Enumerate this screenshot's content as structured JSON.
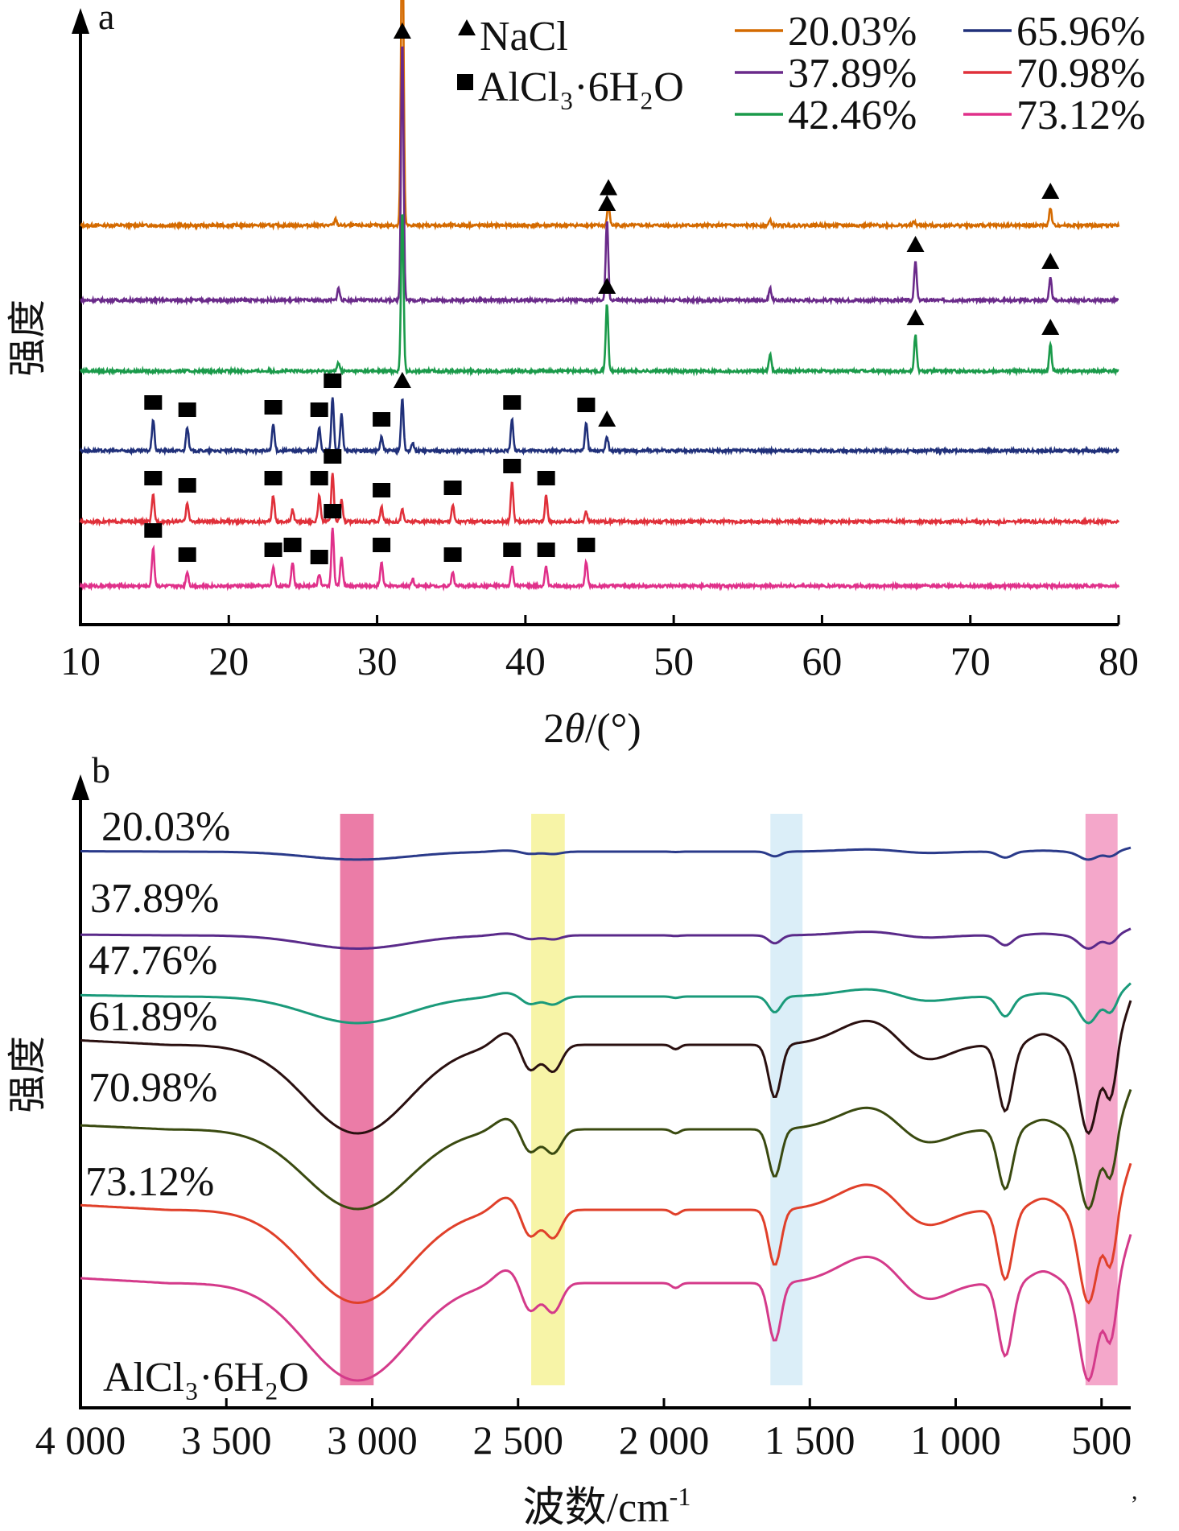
{
  "chart_data": [
    {
      "panel_label": "a",
      "type": "line",
      "xlabel_prefix": "2",
      "xlabel_symbol": "θ",
      "xlabel_suffix": "/(°)",
      "ylabel": "强度",
      "xlim": [
        10,
        80
      ],
      "xticks": [
        "10",
        "20",
        "30",
        "40",
        "50",
        "60",
        "70",
        "80"
      ],
      "legend_markers": [
        "NaCl",
        "AlCl₃·6H₂O"
      ],
      "series": [
        {
          "name": "20.03%",
          "color": "#d46a00",
          "peaks": [
            [
              27.2,
              0.25
            ],
            [
              31.7,
              13.5
            ],
            [
              45.6,
              0.85
            ],
            [
              56.5,
              0.2
            ],
            [
              66.2,
              0.15
            ],
            [
              75.4,
              0.7
            ]
          ],
          "markers": [
            {
              "x": 31.7,
              "type": "NaCl"
            },
            {
              "x": 45.6,
              "type": "NaCl"
            },
            {
              "x": 75.4,
              "type": "NaCl"
            }
          ]
        },
        {
          "name": "37.89%",
          "color": "#6a2a8a",
          "peaks": [
            [
              27.4,
              0.5
            ],
            [
              31.7,
              10.8
            ],
            [
              45.5,
              3.3
            ],
            [
              56.5,
              0.5
            ],
            [
              66.3,
              1.6
            ],
            [
              75.4,
              0.9
            ]
          ],
          "markers": [
            {
              "x": 45.5,
              "type": "NaCl"
            },
            {
              "x": 66.3,
              "type": "NaCl"
            },
            {
              "x": 75.4,
              "type": "NaCl"
            }
          ]
        },
        {
          "name": "42.46%",
          "color": "#1a9a4a",
          "peaks": [
            [
              27.4,
              0.35
            ],
            [
              31.7,
              6.6
            ],
            [
              45.5,
              2.8
            ],
            [
              56.5,
              0.7
            ],
            [
              66.3,
              1.5
            ],
            [
              75.4,
              1.1
            ]
          ],
          "markers": [
            {
              "x": 45.5,
              "type": "NaCl"
            },
            {
              "x": 66.3,
              "type": "NaCl"
            },
            {
              "x": 75.4,
              "type": "NaCl"
            }
          ]
        },
        {
          "name": "65.96%",
          "color": "#20307a",
          "peaks": [
            [
              14.9,
              1.3
            ],
            [
              17.2,
              1.0
            ],
            [
              23.0,
              1.1
            ],
            [
              26.1,
              1.0
            ],
            [
              27.0,
              2.2
            ],
            [
              27.6,
              1.5
            ],
            [
              30.3,
              0.6
            ],
            [
              31.7,
              2.2
            ],
            [
              32.4,
              0.3
            ],
            [
              39.1,
              1.3
            ],
            [
              44.1,
              1.2
            ],
            [
              45.5,
              0.6
            ]
          ],
          "markers": [
            {
              "x": 14.9,
              "type": "AlCl3"
            },
            {
              "x": 17.2,
              "type": "AlCl3"
            },
            {
              "x": 23.0,
              "type": "AlCl3"
            },
            {
              "x": 26.1,
              "type": "AlCl3"
            },
            {
              "x": 27.0,
              "type": "AlCl3"
            },
            {
              "x": 30.3,
              "type": "AlCl3"
            },
            {
              "x": 31.7,
              "type": "NaCl"
            },
            {
              "x": 39.1,
              "type": "AlCl3"
            },
            {
              "x": 44.1,
              "type": "AlCl3"
            },
            {
              "x": 45.5,
              "type": "NaCl"
            }
          ]
        },
        {
          "name": "70.98%",
          "color": "#e0303a",
          "peaks": [
            [
              14.9,
              1.1
            ],
            [
              17.2,
              0.8
            ],
            [
              23.0,
              1.1
            ],
            [
              24.3,
              0.5
            ],
            [
              26.1,
              1.1
            ],
            [
              27.0,
              2.0
            ],
            [
              27.6,
              0.9
            ],
            [
              30.3,
              0.6
            ],
            [
              31.7,
              0.5
            ],
            [
              35.1,
              0.7
            ],
            [
              39.1,
              1.6
            ],
            [
              41.4,
              1.1
            ],
            [
              44.1,
              0.4
            ]
          ],
          "markers": [
            {
              "x": 14.9,
              "type": "AlCl3"
            },
            {
              "x": 17.2,
              "type": "AlCl3"
            },
            {
              "x": 23.0,
              "type": "AlCl3"
            },
            {
              "x": 26.1,
              "type": "AlCl3"
            },
            {
              "x": 27.0,
              "type": "AlCl3"
            },
            {
              "x": 30.3,
              "type": "AlCl3"
            },
            {
              "x": 35.1,
              "type": "AlCl3"
            },
            {
              "x": 39.1,
              "type": "AlCl3"
            },
            {
              "x": 41.4,
              "type": "AlCl3"
            }
          ]
        },
        {
          "name": "73.12%",
          "color": "#e0308a",
          "peaks": [
            [
              14.9,
              1.6
            ],
            [
              17.2,
              0.6
            ],
            [
              23.0,
              0.8
            ],
            [
              24.3,
              1.0
            ],
            [
              26.1,
              0.5
            ],
            [
              27.0,
              2.4
            ],
            [
              27.6,
              1.2
            ],
            [
              30.3,
              1.0
            ],
            [
              32.4,
              0.3
            ],
            [
              35.1,
              0.6
            ],
            [
              39.1,
              0.8
            ],
            [
              41.4,
              0.8
            ],
            [
              44.1,
              1.0
            ]
          ],
          "markers": [
            {
              "x": 14.9,
              "type": "AlCl3"
            },
            {
              "x": 17.2,
              "type": "AlCl3"
            },
            {
              "x": 23.0,
              "type": "AlCl3"
            },
            {
              "x": 24.3,
              "type": "AlCl3"
            },
            {
              "x": 26.1,
              "type": "AlCl3"
            },
            {
              "x": 27.0,
              "type": "AlCl3"
            },
            {
              "x": 30.3,
              "type": "AlCl3"
            },
            {
              "x": 35.1,
              "type": "AlCl3"
            },
            {
              "x": 39.1,
              "type": "AlCl3"
            },
            {
              "x": 41.4,
              "type": "AlCl3"
            },
            {
              "x": 44.1,
              "type": "AlCl3"
            }
          ]
        }
      ]
    },
    {
      "panel_label": "b",
      "type": "line",
      "xlabel_main": "波数/cm",
      "xlabel_sup": "-1",
      "ylabel": "强度",
      "xlim": [
        4000,
        400
      ],
      "xticks": [
        {
          "value": 4000,
          "label": "4 000"
        },
        {
          "value": 3500,
          "label": "3 500"
        },
        {
          "value": 3000,
          "label": "3 000"
        },
        {
          "value": 2500,
          "label": "2 500"
        },
        {
          "value": 2000,
          "label": "2 000"
        },
        {
          "value": 1500,
          "label": "1 500"
        },
        {
          "value": 1000,
          "label": "1 000"
        },
        {
          "value": 500,
          "label": "500"
        }
      ],
      "bands": [
        {
          "from": 3110,
          "to": 2995,
          "color": "#e4508a"
        },
        {
          "from": 2455,
          "to": 2340,
          "color": "#f4f08a"
        },
        {
          "from": 1635,
          "to": 1525,
          "color": "#cfe8f6"
        },
        {
          "from": 555,
          "to": 445,
          "color": "#f08ab8"
        }
      ],
      "series": [
        {
          "label": "20.03%",
          "color": "#2a3a8a",
          "scale": 0.09
        },
        {
          "label": "37.89%",
          "color": "#5a2a8a",
          "scale": 0.15
        },
        {
          "label": "47.76%",
          "color": "#1a9a7a",
          "scale": 0.3
        },
        {
          "label": "61.89%",
          "color": "#2a1010",
          "scale": 1.0
        },
        {
          "label": "70.98%",
          "color": "#3a4a10",
          "scale": 0.9
        },
        {
          "label": "73.12%",
          "color": "#e0402a",
          "scale": 1.05
        },
        {
          "label": "AlCl₃·6H₂O",
          "color": "#d43a8a",
          "scale": 1.1
        }
      ]
    }
  ],
  "footnote": ","
}
